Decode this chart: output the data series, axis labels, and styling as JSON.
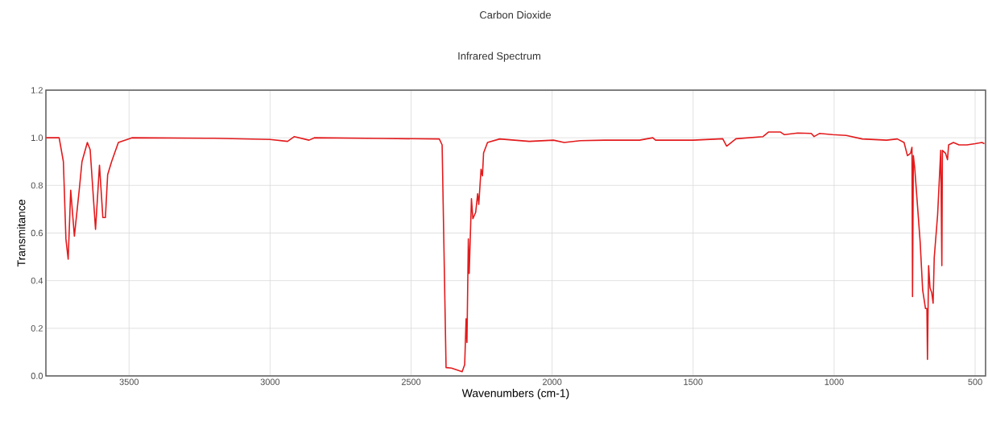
{
  "chart_data": {
    "type": "line",
    "title": "Carbon Dioxide",
    "subtitle": "Infrared Spectrum",
    "xlabel": "Wavenumbers (cm-1)",
    "ylabel": "Transmitance",
    "xlim": [
      3795,
      463
    ],
    "ylim": [
      0,
      1.2
    ],
    "xticks": [
      3500,
      3000,
      2500,
      2000,
      1500,
      1000,
      500
    ],
    "yticks": [
      {
        "value": 0,
        "label": "0.0"
      },
      0.2,
      0.4,
      0.6,
      0.8,
      {
        "value": 1.0,
        "label": "1.0"
      },
      1.2
    ],
    "grid": true,
    "line_style": "solid",
    "series": [
      {
        "color": "#e31a1c",
        "x": [
          3794,
          3748,
          3733,
          3724,
          3716,
          3707,
          3694,
          3676,
          3667,
          3648,
          3638,
          3619,
          3605,
          3593,
          3584,
          3576,
          3562,
          3538,
          3490,
          3200,
          3000,
          2938,
          2914,
          2862,
          2843,
          2600,
          2400,
          2390,
          2376,
          2357,
          2319,
          2310,
          2305,
          2302,
          2297,
          2294,
          2286,
          2281,
          2271,
          2264,
          2260,
          2252,
          2247,
          2243,
          2229,
          2186,
          2081,
          1995,
          1957,
          1900,
          1814,
          1690,
          1643,
          1633,
          1500,
          1395,
          1381,
          1348,
          1252,
          1233,
          1190,
          1176,
          1129,
          1081,
          1071,
          1052,
          1005,
          957,
          900,
          814,
          776,
          752,
          740,
          729,
          724,
          722,
          719,
          714,
          695,
          686,
          676,
          671,
          669,
          665,
          660,
          654,
          649,
          645,
          633,
          622,
          618,
          616,
          605,
          598,
          594,
          577,
          557,
          529,
          500,
          476,
          467
        ],
        "values": [
          1.0,
          1.0,
          0.9,
          0.575,
          0.49,
          0.78,
          0.587,
          0.79,
          0.9,
          0.98,
          0.95,
          0.615,
          0.885,
          0.665,
          0.665,
          0.845,
          0.9,
          0.98,
          1.0,
          0.998,
          0.993,
          0.985,
          1.005,
          0.99,
          1.0,
          0.997,
          0.995,
          0.97,
          0.035,
          0.033,
          0.018,
          0.047,
          0.24,
          0.14,
          0.575,
          0.43,
          0.744,
          0.66,
          0.687,
          0.765,
          0.72,
          0.868,
          0.84,
          0.936,
          0.98,
          0.995,
          0.985,
          0.99,
          0.98,
          0.988,
          0.99,
          0.99,
          1.0,
          0.99,
          0.99,
          0.996,
          0.965,
          0.996,
          1.005,
          1.024,
          1.024,
          1.013,
          1.02,
          1.018,
          1.005,
          1.018,
          1.013,
          1.01,
          0.995,
          0.99,
          0.995,
          0.98,
          0.925,
          0.935,
          0.96,
          0.333,
          0.925,
          0.87,
          0.564,
          0.36,
          0.283,
          0.283,
          0.069,
          0.463,
          0.37,
          0.35,
          0.305,
          0.497,
          0.677,
          0.947,
          0.463,
          0.947,
          0.935,
          0.908,
          0.97,
          0.98,
          0.97,
          0.97,
          0.975,
          0.98,
          0.975
        ]
      }
    ]
  }
}
